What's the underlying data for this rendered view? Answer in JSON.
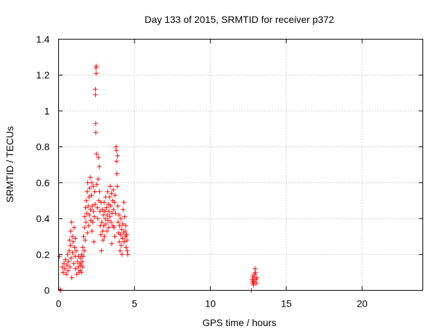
{
  "chart_data": {
    "type": "scatter",
    "title": "Day 133 of 2015, SRMTID for receiver p372",
    "xlabel": "GPS time / hours",
    "ylabel": "SRMTID / TECUs",
    "xlim": [
      0,
      24
    ],
    "ylim": [
      0,
      1.4
    ],
    "xticks": [
      0,
      5,
      10,
      15,
      20
    ],
    "xtick_labels": [
      "0",
      "5",
      "10",
      "15",
      "20"
    ],
    "yticks": [
      0,
      0.2,
      0.4,
      0.6,
      0.8,
      1.0,
      1.2,
      1.4
    ],
    "ytick_labels": [
      "0",
      "0.2",
      "0.4",
      "0.6",
      "0.8",
      "1",
      "1.2",
      "1.4"
    ],
    "grid": true,
    "marker": "+",
    "color": "#ff0000",
    "series": [
      {
        "name": "SRMTID",
        "points": [
          [
            0.05,
            0.19
          ],
          [
            0.1,
            0.005
          ],
          [
            0.12,
            0.0
          ],
          [
            0.25,
            0.13
          ],
          [
            0.3,
            0.1
          ],
          [
            0.35,
            0.15
          ],
          [
            0.4,
            0.12
          ],
          [
            0.45,
            0.17
          ],
          [
            0.5,
            0.09
          ],
          [
            0.55,
            0.14
          ],
          [
            0.6,
            0.2
          ],
          [
            0.62,
            0.11
          ],
          [
            0.65,
            0.16
          ],
          [
            0.7,
            0.22
          ],
          [
            0.72,
            0.28
          ],
          [
            0.75,
            0.13
          ],
          [
            0.78,
            0.25
          ],
          [
            0.8,
            0.33
          ],
          [
            0.82,
            0.18
          ],
          [
            0.85,
            0.38
          ],
          [
            0.87,
            0.07
          ],
          [
            0.9,
            0.3
          ],
          [
            0.92,
            0.21
          ],
          [
            0.95,
            0.27
          ],
          [
            1.0,
            0.15
          ],
          [
            1.02,
            0.35
          ],
          [
            1.05,
            0.24
          ],
          [
            1.08,
            0.19
          ],
          [
            1.1,
            0.29
          ],
          [
            1.12,
            0.12
          ],
          [
            1.15,
            0.22
          ],
          [
            1.2,
            0.09
          ],
          [
            1.25,
            0.16
          ],
          [
            1.3,
            0.13
          ],
          [
            1.32,
            0.19
          ],
          [
            1.35,
            0.1
          ],
          [
            1.4,
            0.15
          ],
          [
            1.42,
            0.11
          ],
          [
            1.45,
            0.18
          ],
          [
            1.48,
            0.14
          ],
          [
            1.5,
            0.1
          ],
          [
            1.52,
            0.2
          ],
          [
            1.55,
            0.16
          ],
          [
            1.58,
            0.13
          ],
          [
            1.6,
            0.24
          ],
          [
            1.62,
            0.19
          ],
          [
            1.65,
            0.3
          ],
          [
            1.68,
            0.22
          ],
          [
            1.7,
            0.35
          ],
          [
            1.72,
            0.41
          ],
          [
            1.75,
            0.28
          ],
          [
            1.78,
            0.46
          ],
          [
            1.8,
            0.38
          ],
          [
            1.82,
            0.5
          ],
          [
            1.85,
            0.43
          ],
          [
            1.88,
            0.55
          ],
          [
            1.9,
            0.32
          ],
          [
            1.92,
            0.6
          ],
          [
            1.95,
            0.47
          ],
          [
            1.98,
            0.36
          ],
          [
            2.0,
            0.52
          ],
          [
            2.02,
            0.42
          ],
          [
            2.05,
            0.57
          ],
          [
            2.08,
            0.63
          ],
          [
            2.1,
            0.45
          ],
          [
            2.12,
            0.39
          ],
          [
            2.15,
            0.53
          ],
          [
            2.18,
            0.6
          ],
          [
            2.2,
            0.33
          ],
          [
            2.22,
            0.47
          ],
          [
            2.25,
            0.38
          ],
          [
            2.28,
            0.58
          ],
          [
            2.3,
            0.44
          ],
          [
            2.32,
            0.27
          ],
          [
            2.35,
            0.41
          ],
          [
            2.38,
            0.55
          ],
          [
            2.4,
            0.48
          ],
          [
            2.42,
            1.12
          ],
          [
            2.43,
            1.09
          ],
          [
            2.44,
            0.93
          ],
          [
            2.45,
            0.88
          ],
          [
            2.46,
            1.24
          ],
          [
            2.47,
            1.21
          ],
          [
            2.48,
            1.25
          ],
          [
            2.5,
            0.76
          ],
          [
            2.52,
            0.59
          ],
          [
            2.55,
            0.46
          ],
          [
            2.58,
            0.4
          ],
          [
            2.6,
            0.62
          ],
          [
            2.62,
            0.74
          ],
          [
            2.65,
            0.5
          ],
          [
            2.68,
            0.69
          ],
          [
            2.7,
            0.55
          ],
          [
            2.72,
            0.44
          ],
          [
            2.75,
            0.36
          ],
          [
            2.78,
            0.31
          ],
          [
            2.8,
            0.49
          ],
          [
            2.82,
            0.22
          ],
          [
            2.85,
            0.38
          ],
          [
            2.88,
            0.45
          ],
          [
            2.9,
            0.33
          ],
          [
            2.92,
            0.28
          ],
          [
            2.95,
            0.42
          ],
          [
            2.98,
            0.36
          ],
          [
            3.0,
            0.49
          ],
          [
            3.02,
            0.3
          ],
          [
            3.05,
            0.44
          ],
          [
            3.08,
            0.4
          ],
          [
            3.1,
            0.52
          ],
          [
            3.12,
            0.37
          ],
          [
            3.15,
            0.46
          ],
          [
            3.18,
            0.33
          ],
          [
            3.2,
            0.42
          ],
          [
            3.22,
            0.55
          ],
          [
            3.25,
            0.39
          ],
          [
            3.28,
            0.48
          ],
          [
            3.3,
            0.35
          ],
          [
            3.32,
            0.44
          ],
          [
            3.35,
            0.52
          ],
          [
            3.38,
            0.41
          ],
          [
            3.4,
            0.58
          ],
          [
            3.42,
            0.47
          ],
          [
            3.45,
            0.38
          ],
          [
            3.48,
            0.54
          ],
          [
            3.5,
            0.26
          ],
          [
            3.52,
            0.43
          ],
          [
            3.55,
            0.5
          ],
          [
            3.58,
            0.36
          ],
          [
            3.6,
            0.56
          ],
          [
            3.62,
            0.45
          ],
          [
            3.65,
            0.35
          ],
          [
            3.68,
            0.49
          ],
          [
            3.7,
            0.3
          ],
          [
            3.72,
            0.53
          ],
          [
            3.75,
            0.43
          ],
          [
            3.78,
            0.8
          ],
          [
            3.8,
            0.78
          ],
          [
            3.82,
            0.72
          ],
          [
            3.84,
            0.65
          ],
          [
            3.86,
            0.58
          ],
          [
            3.88,
            0.75
          ],
          [
            3.9,
            0.47
          ],
          [
            3.92,
            0.38
          ],
          [
            3.95,
            0.32
          ],
          [
            3.98,
            0.42
          ],
          [
            4.0,
            0.27
          ],
          [
            4.02,
            0.36
          ],
          [
            4.05,
            0.22
          ],
          [
            4.08,
            0.31
          ],
          [
            4.1,
            0.4
          ],
          [
            4.12,
            0.25
          ],
          [
            4.15,
            0.34
          ],
          [
            4.18,
            0.2
          ],
          [
            4.2,
            0.29
          ],
          [
            4.22,
            0.37
          ],
          [
            4.25,
            0.45
          ],
          [
            4.28,
            0.32
          ],
          [
            4.3,
            0.49
          ],
          [
            4.32,
            0.27
          ],
          [
            4.35,
            0.41
          ],
          [
            4.38,
            0.33
          ],
          [
            4.4,
            0.3
          ],
          [
            4.42,
            0.36
          ],
          [
            4.45,
            0.24
          ],
          [
            4.48,
            0.31
          ],
          [
            4.5,
            0.28
          ],
          [
            4.52,
            0.22
          ],
          [
            4.55,
            0.2
          ],
          [
            12.7,
            0.0
          ],
          [
            12.75,
            0.06
          ],
          [
            12.78,
            0.04
          ],
          [
            12.8,
            0.08
          ],
          [
            12.82,
            0.05
          ],
          [
            12.85,
            0.03
          ],
          [
            12.88,
            0.07
          ],
          [
            12.9,
            0.05
          ],
          [
            12.92,
            0.09
          ],
          [
            12.95,
            0.12
          ],
          [
            12.97,
            0.1
          ],
          [
            13.0,
            0.06
          ],
          [
            13.02,
            0.04
          ],
          [
            13.05,
            0.07
          ]
        ]
      }
    ]
  }
}
